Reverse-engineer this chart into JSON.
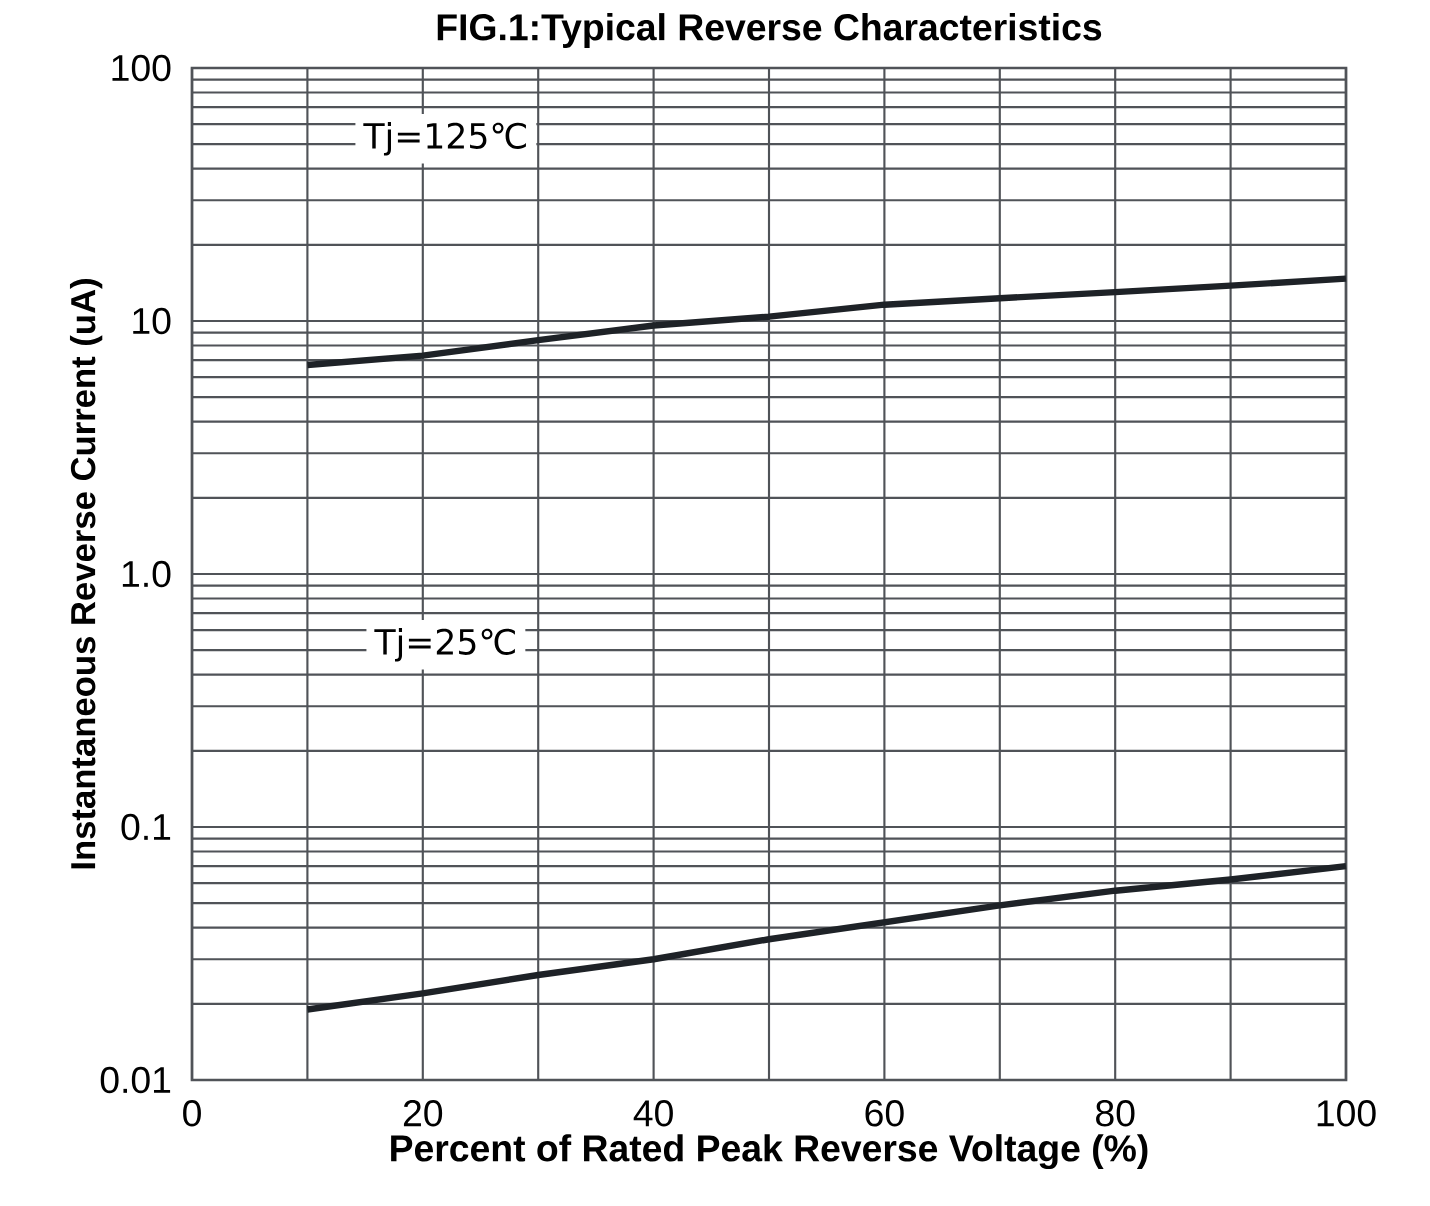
{
  "chart_data": {
    "type": "line",
    "title": "FIG.1:Typical Reverse Characteristics",
    "xlabel": "Percent of Rated Peak Reverse Voltage  (%)",
    "ylabel": "Instantaneous Reverse Current (uA)",
    "log": "y",
    "grid": true,
    "marker": "none",
    "line_style": "solid",
    "xlim": [
      0,
      100
    ],
    "ylim": [
      0.01,
      100
    ],
    "xticks": [
      0,
      {
        "value": 10,
        "label": null
      },
      20,
      {
        "value": 30,
        "label": null
      },
      40,
      {
        "value": 50,
        "label": null
      },
      60,
      {
        "value": 70,
        "label": null
      },
      80,
      {
        "value": 90,
        "label": null
      },
      100
    ],
    "yticks": [
      0.01,
      0.1,
      {
        "value": 1,
        "label": "1.0"
      },
      10,
      100
    ],
    "annotations": [
      "Tj=125℃",
      "Tj=25℃"
    ],
    "series": [
      {
        "color": "#1e2227",
        "x": [
          10,
          20,
          30,
          40,
          50,
          60,
          70,
          80,
          90,
          100
        ],
        "values": [
          6.7,
          7.3,
          8.4,
          9.6,
          10.4,
          11.6,
          12.3,
          13.0,
          13.8,
          14.7
        ]
      },
      {
        "color": "#1e2227",
        "x": [
          10,
          20,
          30,
          40,
          50,
          60,
          70,
          80,
          90,
          100
        ],
        "values": [
          0.019,
          0.022,
          0.026,
          0.03,
          0.036,
          0.042,
          0.049,
          0.056,
          0.062,
          0.07
        ]
      }
    ]
  }
}
